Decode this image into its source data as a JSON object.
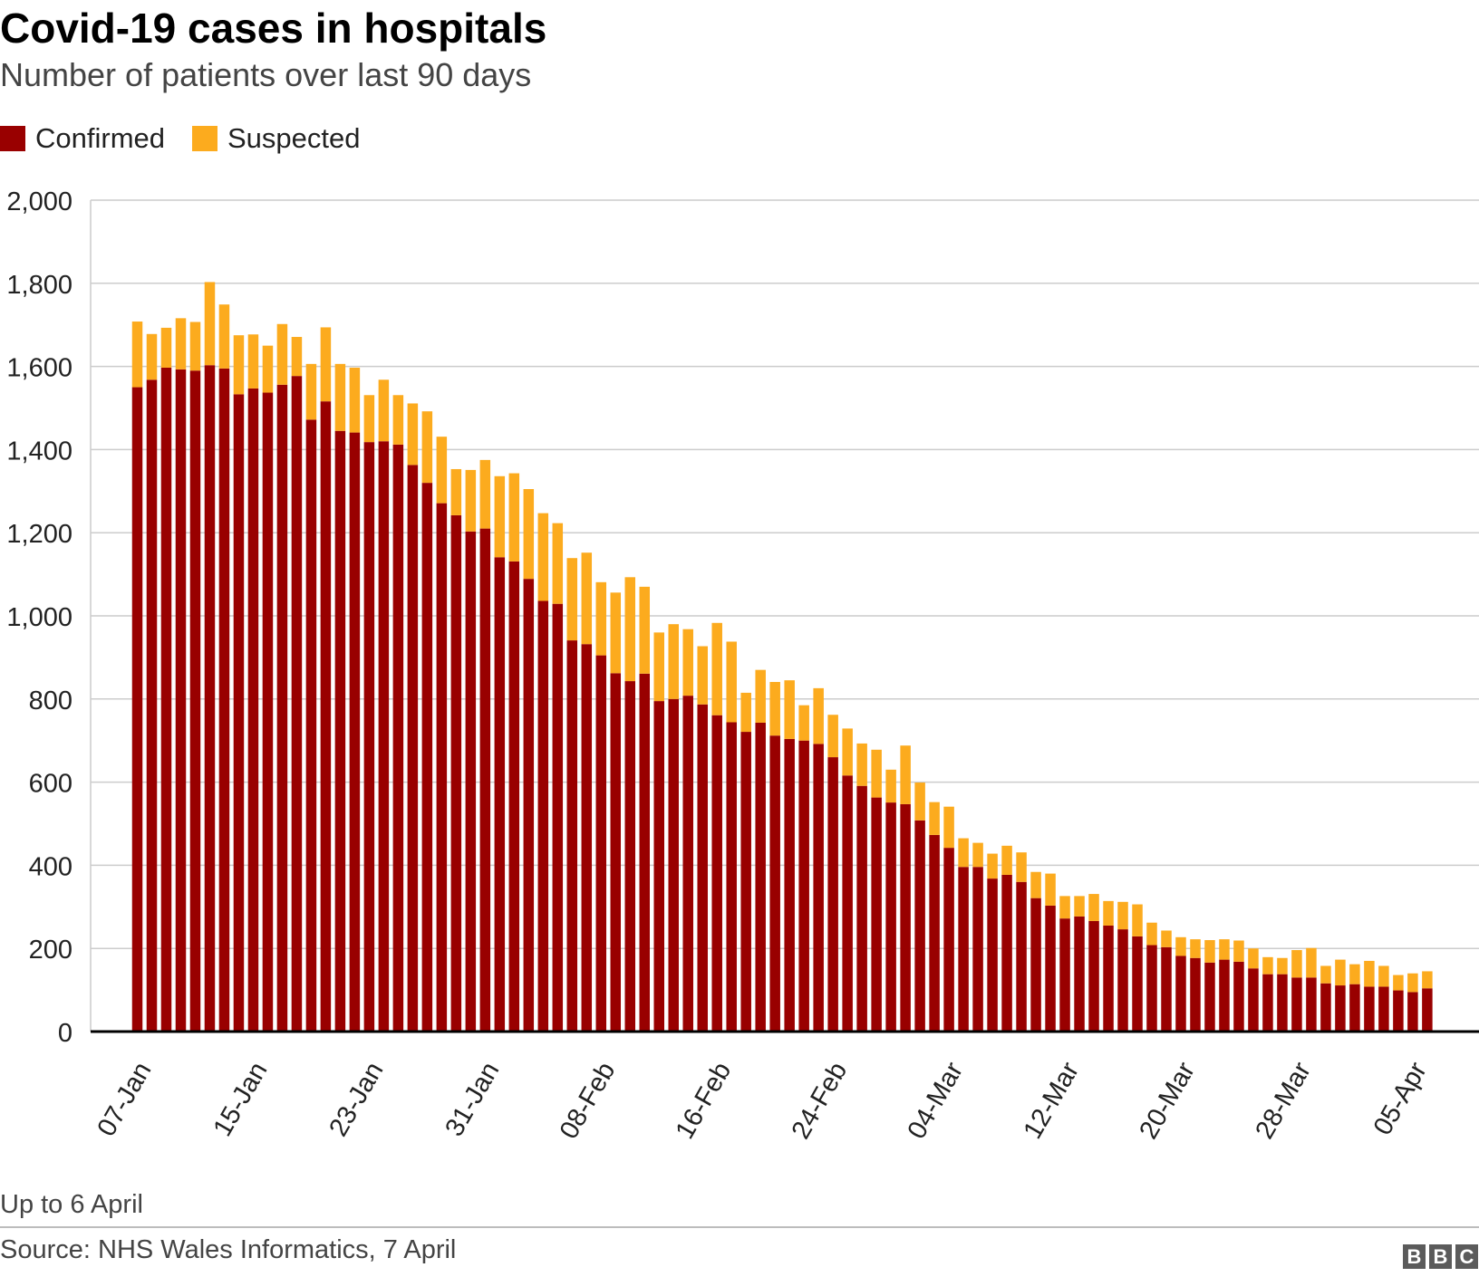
{
  "chart_data": {
    "type": "bar",
    "stacked": true,
    "title": "Covid-19 cases in hospitals",
    "subtitle": "Number of patients over last 90 days",
    "ylim": [
      0,
      2000
    ],
    "yticks": [
      0,
      200,
      400,
      600,
      800,
      1000,
      1200,
      1400,
      1600,
      1800,
      2000
    ],
    "ytick_labels": [
      "0",
      "200",
      "400",
      "600",
      "800",
      "1,000",
      "1,200",
      "1,400",
      "1,600",
      "1,800",
      "2,000"
    ],
    "xtick_labels": [
      {
        "index": 0,
        "label": "07-Jan"
      },
      {
        "index": 8,
        "label": "15-Jan"
      },
      {
        "index": 16,
        "label": "23-Jan"
      },
      {
        "index": 24,
        "label": "31-Jan"
      },
      {
        "index": 32,
        "label": "08-Feb"
      },
      {
        "index": 40,
        "label": "16-Feb"
      },
      {
        "index": 48,
        "label": "24-Feb"
      },
      {
        "index": 56,
        "label": "04-Mar"
      },
      {
        "index": 64,
        "label": "12-Mar"
      },
      {
        "index": 72,
        "label": "20-Mar"
      },
      {
        "index": 80,
        "label": "28-Mar"
      },
      {
        "index": 88,
        "label": "05-Apr"
      }
    ],
    "legend_position": "top-left",
    "series": [
      {
        "name": "Confirmed",
        "color": "#990000",
        "values": [
          1550,
          1568,
          1597,
          1593,
          1590,
          1603,
          1595,
          1533,
          1547,
          1537,
          1556,
          1577,
          1472,
          1516,
          1445,
          1441,
          1418,
          1420,
          1412,
          1363,
          1320,
          1271,
          1242,
          1203,
          1210,
          1141,
          1131,
          1089,
          1036,
          1029,
          941,
          932,
          905,
          862,
          843,
          861,
          795,
          800,
          808,
          787,
          761,
          744,
          721,
          743,
          712,
          704,
          700,
          692,
          660,
          616,
          591,
          563,
          551,
          547,
          508,
          473,
          442,
          396,
          396,
          368,
          377,
          360,
          321,
          303,
          272,
          277,
          266,
          255,
          246,
          229,
          208,
          203,
          182,
          177,
          166,
          173,
          168,
          152,
          138,
          138,
          130,
          130,
          116,
          111,
          114,
          108,
          108,
          99,
          95,
          104
        ]
      },
      {
        "name": "Suspected",
        "color": "#fcab1e",
        "values": [
          158,
          110,
          96,
          123,
          117,
          200,
          154,
          142,
          130,
          113,
          146,
          94,
          134,
          178,
          161,
          156,
          113,
          148,
          119,
          148,
          172,
          160,
          111,
          148,
          165,
          195,
          212,
          216,
          211,
          194,
          198,
          220,
          176,
          194,
          250,
          209,
          165,
          180,
          160,
          140,
          222,
          194,
          94,
          127,
          129,
          141,
          85,
          134,
          102,
          113,
          102,
          115,
          79,
          141,
          91,
          79,
          99,
          69,
          58,
          60,
          70,
          71,
          63,
          77,
          54,
          49,
          65,
          59,
          66,
          77,
          54,
          40,
          45,
          45,
          54,
          49,
          51,
          48,
          41,
          39,
          66,
          71,
          42,
          62,
          48,
          62,
          50,
          37,
          45,
          41
        ]
      }
    ],
    "footnote": "Up to 6 April",
    "source": "Source: NHS Wales Informatics, 7 April"
  },
  "legend": [
    {
      "label": "Confirmed",
      "color": "#990000"
    },
    {
      "label": "Suspected",
      "color": "#fcab1e"
    }
  ],
  "brand": {
    "letters": [
      "B",
      "B",
      "C"
    ]
  }
}
